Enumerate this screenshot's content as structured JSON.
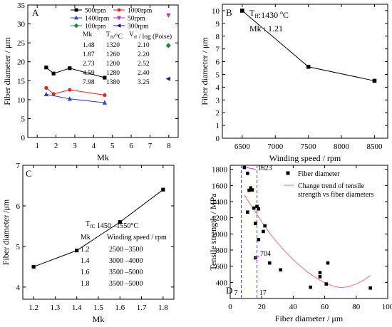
{
  "chart_data": [
    {
      "panel": "A",
      "type": "scatter",
      "xlabel": "Mk",
      "ylabel": "Fiber diameter / μm",
      "xlim": [
        0.5,
        8.5
      ],
      "ylim": [
        0,
        35
      ],
      "xticks": [
        1,
        2,
        3,
        4,
        5,
        6,
        7,
        8
      ],
      "yticks": [
        0,
        5,
        10,
        15,
        20,
        25,
        30,
        35
      ],
      "legend_position": "top",
      "series": [
        {
          "name": "500rpm",
          "marker": "square",
          "color": "#000000",
          "connected": true,
          "x": [
            1.48,
            1.87,
            2.73,
            4.59
          ],
          "y": [
            18.5,
            16.9,
            18.3,
            15.8
          ]
        },
        {
          "name": "1000rpm",
          "marker": "circle",
          "color": "#e8221b",
          "connected": true,
          "x": [
            1.48,
            1.87,
            2.73,
            4.59
          ],
          "y": [
            13.1,
            11.5,
            12.6,
            11.2
          ]
        },
        {
          "name": "1400rpm",
          "marker": "triangle-up",
          "color": "#2a3de0",
          "connected": true,
          "x": [
            1.48,
            2.73,
            4.59
          ],
          "y": [
            11.4,
            10.2,
            9.2
          ]
        },
        {
          "name": "50rpm",
          "marker": "triangle-down",
          "color": "#d61fd6",
          "connected": false,
          "x": [
            7.98
          ],
          "y": [
            32.3
          ]
        },
        {
          "name": "100rpm",
          "marker": "diamond",
          "color": "#1f8a2b",
          "connected": false,
          "x": [
            7.98
          ],
          "y": [
            24.3
          ]
        },
        {
          "name": "300rpm",
          "marker": "triangle-left",
          "color": "#1a1aa0",
          "connected": false,
          "x": [
            7.98
          ],
          "y": [
            15.5
          ]
        }
      ],
      "table": {
        "headers": [
          "Mk",
          "T_ff/°C",
          "V_ff / log (Poise)"
        ],
        "rows": [
          [
            "1.48",
            "1320",
            "2.10"
          ],
          [
            "1.87",
            "1260",
            "2.20"
          ],
          [
            "2.73",
            "1200",
            "2.52"
          ],
          [
            "4.59",
            "1280",
            "2.40"
          ],
          [
            "7.98",
            "1380",
            "3.25"
          ]
        ]
      }
    },
    {
      "panel": "B",
      "type": "line",
      "xlabel": "Winding speed / rpm",
      "ylabel": "Fiber diameter / μm",
      "xlim": [
        6200,
        8700
      ],
      "ylim": [
        0,
        10.5
      ],
      "xticks": [
        6500,
        7000,
        7500,
        8000,
        8500
      ],
      "yticks": [
        0,
        1,
        2,
        3,
        4,
        5,
        6,
        7,
        8,
        9,
        10
      ],
      "series": [
        {
          "name": "",
          "marker": "square",
          "color": "#000000",
          "x": [
            6500,
            7500,
            8500
          ],
          "y": [
            10.0,
            5.6,
            4.5
          ]
        }
      ],
      "annotations": [
        "T_ff:1430 ºC",
        "Mk : 1.21"
      ]
    },
    {
      "panel": "C",
      "type": "line",
      "xlabel": "Mk",
      "ylabel": "Fiber diameter /μm",
      "xlim": [
        1.15,
        1.85
      ],
      "ylim": [
        3.7,
        7.0
      ],
      "xticks": [
        1.2,
        1.3,
        1.4,
        1.5,
        1.6,
        1.7,
        1.8
      ],
      "yticks": [
        4,
        5,
        6,
        7
      ],
      "series": [
        {
          "name": "",
          "marker": "square",
          "color": "#000000",
          "x": [
            1.2,
            1.4,
            1.6,
            1.8
          ],
          "y": [
            4.5,
            4.9,
            5.6,
            6.4
          ]
        }
      ],
      "annotation": "T_ff: 1450 –1550°C",
      "table": {
        "headers": [
          "Mk",
          "Winding speed / rpm"
        ],
        "rows": [
          [
            "1.2",
            "2500 –3500"
          ],
          [
            "1.4",
            "3000 –4000"
          ],
          [
            "1.6",
            "3500 –5000"
          ],
          [
            "1.8",
            "3500 –5000"
          ]
        ]
      }
    },
    {
      "panel": "D",
      "type": "scatter",
      "xlabel": "Fiber diameter / μm",
      "ylabel": "Tensile strength / MPa",
      "xlim": [
        0,
        100
      ],
      "ylim": [
        200,
        1850
      ],
      "xticks": [
        0,
        20,
        40,
        60,
        80,
        100
      ],
      "yticks": [
        400,
        600,
        800,
        1000,
        1200,
        1400,
        1600,
        1800
      ],
      "legend_position": "top-right",
      "series": [
        {
          "name": "Fiber diameter",
          "marker": "square",
          "color": "#000000",
          "x": [
            9,
            11,
            13,
            12,
            14,
            17,
            15,
            18,
            11,
            16,
            22,
            21,
            18,
            16,
            25,
            32,
            51,
            57,
            57,
            62,
            61,
            89
          ],
          "y": [
            1823,
            1750,
            1570,
            1540,
            1545,
            1340,
            1320,
            1310,
            1270,
            1130,
            1100,
            1030,
            930,
            704,
            640,
            555,
            340,
            520,
            470,
            640,
            380,
            330
          ]
        },
        {
          "name": "Change trend of tensile strength vs fiber diameters",
          "type": "line",
          "color": "#f07070",
          "x": [
            9,
            15,
            20,
            25,
            30,
            35,
            40,
            45,
            50,
            55,
            60,
            65,
            70,
            75,
            80,
            85,
            89
          ],
          "y": [
            1480,
            1300,
            1150,
            1010,
            890,
            780,
            680,
            595,
            515,
            450,
            395,
            355,
            335,
            345,
            380,
            430,
            485
          ]
        }
      ],
      "vlines": [
        7,
        17
      ],
      "labels": [
        "1823",
        "704",
        "7",
        "17"
      ]
    }
  ],
  "panels": {
    "A": {
      "label": "A"
    },
    "B": {
      "label": "B",
      "note1": "T_ff:1430 ºC",
      "note2": "Mk : 1.21"
    },
    "C": {
      "label": "C",
      "note": "T_ff: 1450 –1550°C"
    },
    "D": {
      "label": "D",
      "peak": "1823",
      "low": "704",
      "v1": "7",
      "v2": "17"
    }
  }
}
